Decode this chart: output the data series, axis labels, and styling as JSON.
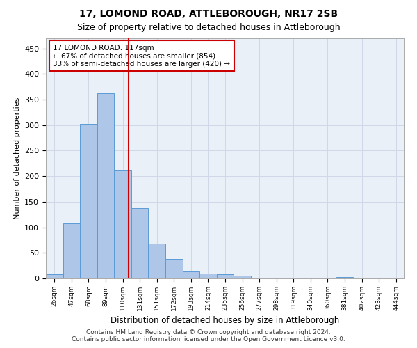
{
  "title1": "17, LOMOND ROAD, ATTLEBOROUGH, NR17 2SB",
  "title2": "Size of property relative to detached houses in Attleborough",
  "xlabel": "Distribution of detached houses by size in Attleborough",
  "ylabel": "Number of detached properties",
  "footer": "Contains HM Land Registry data © Crown copyright and database right 2024.\nContains public sector information licensed under the Open Government Licence v3.0.",
  "bin_labels": [
    "26sqm",
    "47sqm",
    "68sqm",
    "89sqm",
    "110sqm",
    "131sqm",
    "151sqm",
    "172sqm",
    "193sqm",
    "214sqm",
    "235sqm",
    "256sqm",
    "277sqm",
    "298sqm",
    "319sqm",
    "340sqm",
    "360sqm",
    "381sqm",
    "402sqm",
    "423sqm",
    "444sqm"
  ],
  "bar_values": [
    8,
    108,
    302,
    362,
    213,
    137,
    68,
    38,
    13,
    10,
    8,
    6,
    2,
    1,
    0,
    0,
    0,
    3,
    0,
    0,
    0
  ],
  "bar_color": "#aec6e8",
  "bar_edge_color": "#5b9bd5",
  "grid_color": "#d0d8e8",
  "background_color": "#eaf0f8",
  "annotation_text": "17 LOMOND ROAD: 117sqm\n← 67% of detached houses are smaller (854)\n33% of semi-detached houses are larger (420) →",
  "annotation_box_color": "#ffffff",
  "annotation_box_edge": "#cc0000",
  "annotation_text_color": "#000000",
  "ylim": [
    0,
    470
  ],
  "yticks": [
    0,
    50,
    100,
    150,
    200,
    250,
    300,
    350,
    400,
    450
  ]
}
